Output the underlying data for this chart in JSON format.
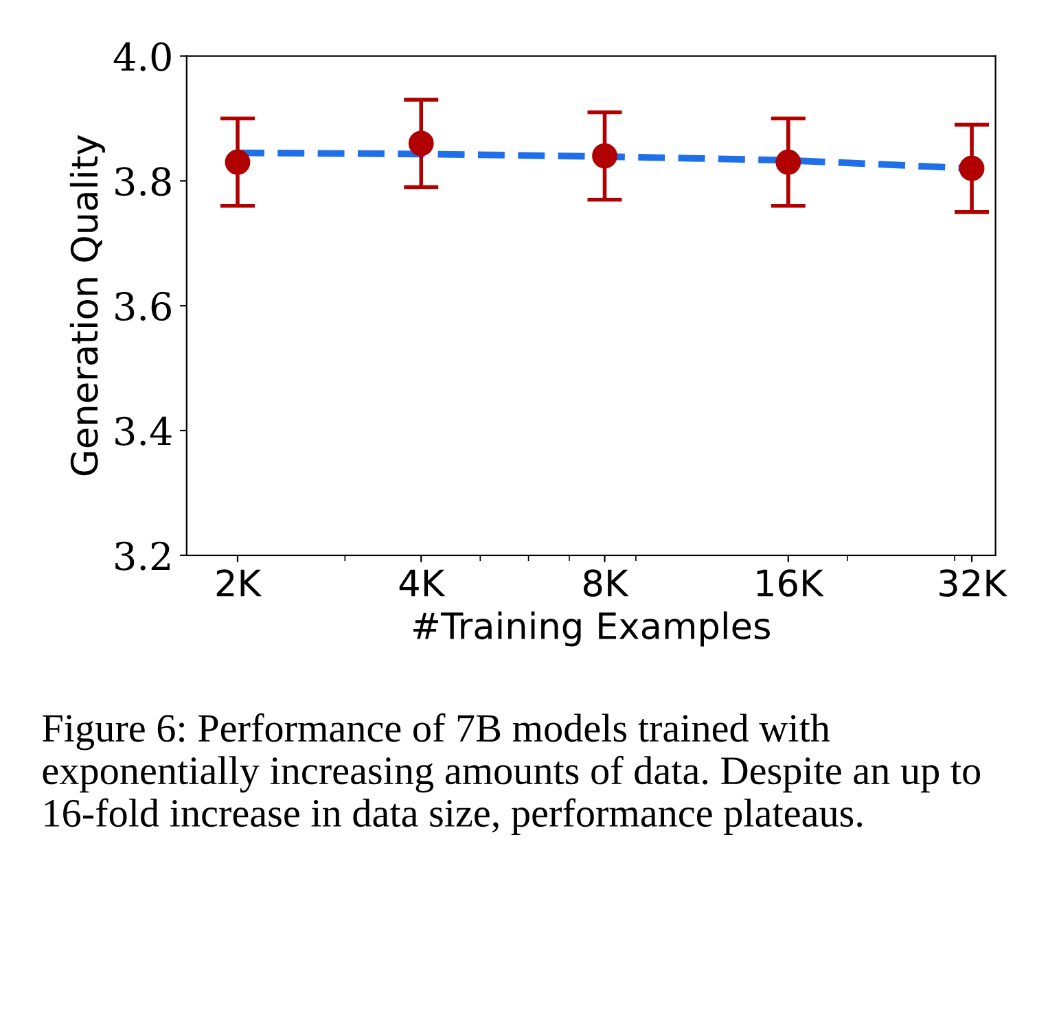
{
  "chart_data": {
    "type": "scatter",
    "xlabel": "#Training Examples",
    "ylabel": "Generation Quality",
    "log": "x",
    "xlim": [
      1650,
      35000
    ],
    "xticks": [
      {
        "value": 2000,
        "label": "2K"
      },
      {
        "value": 4000,
        "label": "4K"
      },
      {
        "value": 8000,
        "label": "8K"
      },
      {
        "value": 16000,
        "label": "16K"
      },
      {
        "value": 32000,
        "label": "32K"
      }
    ],
    "ylim": [
      3.2,
      4.0
    ],
    "yticks": [
      {
        "value": 3.2,
        "label": "3.2"
      },
      {
        "value": 3.4,
        "label": "3.4"
      },
      {
        "value": 3.6,
        "label": "3.6"
      },
      {
        "value": 3.8,
        "label": "3.8"
      },
      {
        "value": 4.0,
        "label": "4.0"
      }
    ],
    "grid": false,
    "legend": false,
    "series": [
      {
        "type": "line",
        "color": "#1f6fe8",
        "line_style": "dashed",
        "marker": "none",
        "x": [
          2000,
          4000,
          8000,
          16000,
          32000
        ],
        "values": [
          3.845,
          3.843,
          3.839,
          3.833,
          3.82
        ]
      },
      {
        "color": "#b00000",
        "marker": "circle",
        "x": [
          2000,
          4000,
          8000,
          16000,
          32000
        ],
        "values": [
          3.83,
          3.86,
          3.84,
          3.83,
          3.82
        ],
        "errors": [
          [
            3.76,
            3.9
          ],
          [
            3.79,
            3.93
          ],
          [
            3.77,
            3.91
          ],
          [
            3.76,
            3.9
          ],
          [
            3.75,
            3.89
          ]
        ]
      }
    ],
    "annotations": [
      "Figure 6: Performance of 7B models trained with exponentially increasing amounts of data. Despite an up to 16-fold increase in data size, performance plateaus."
    ]
  }
}
